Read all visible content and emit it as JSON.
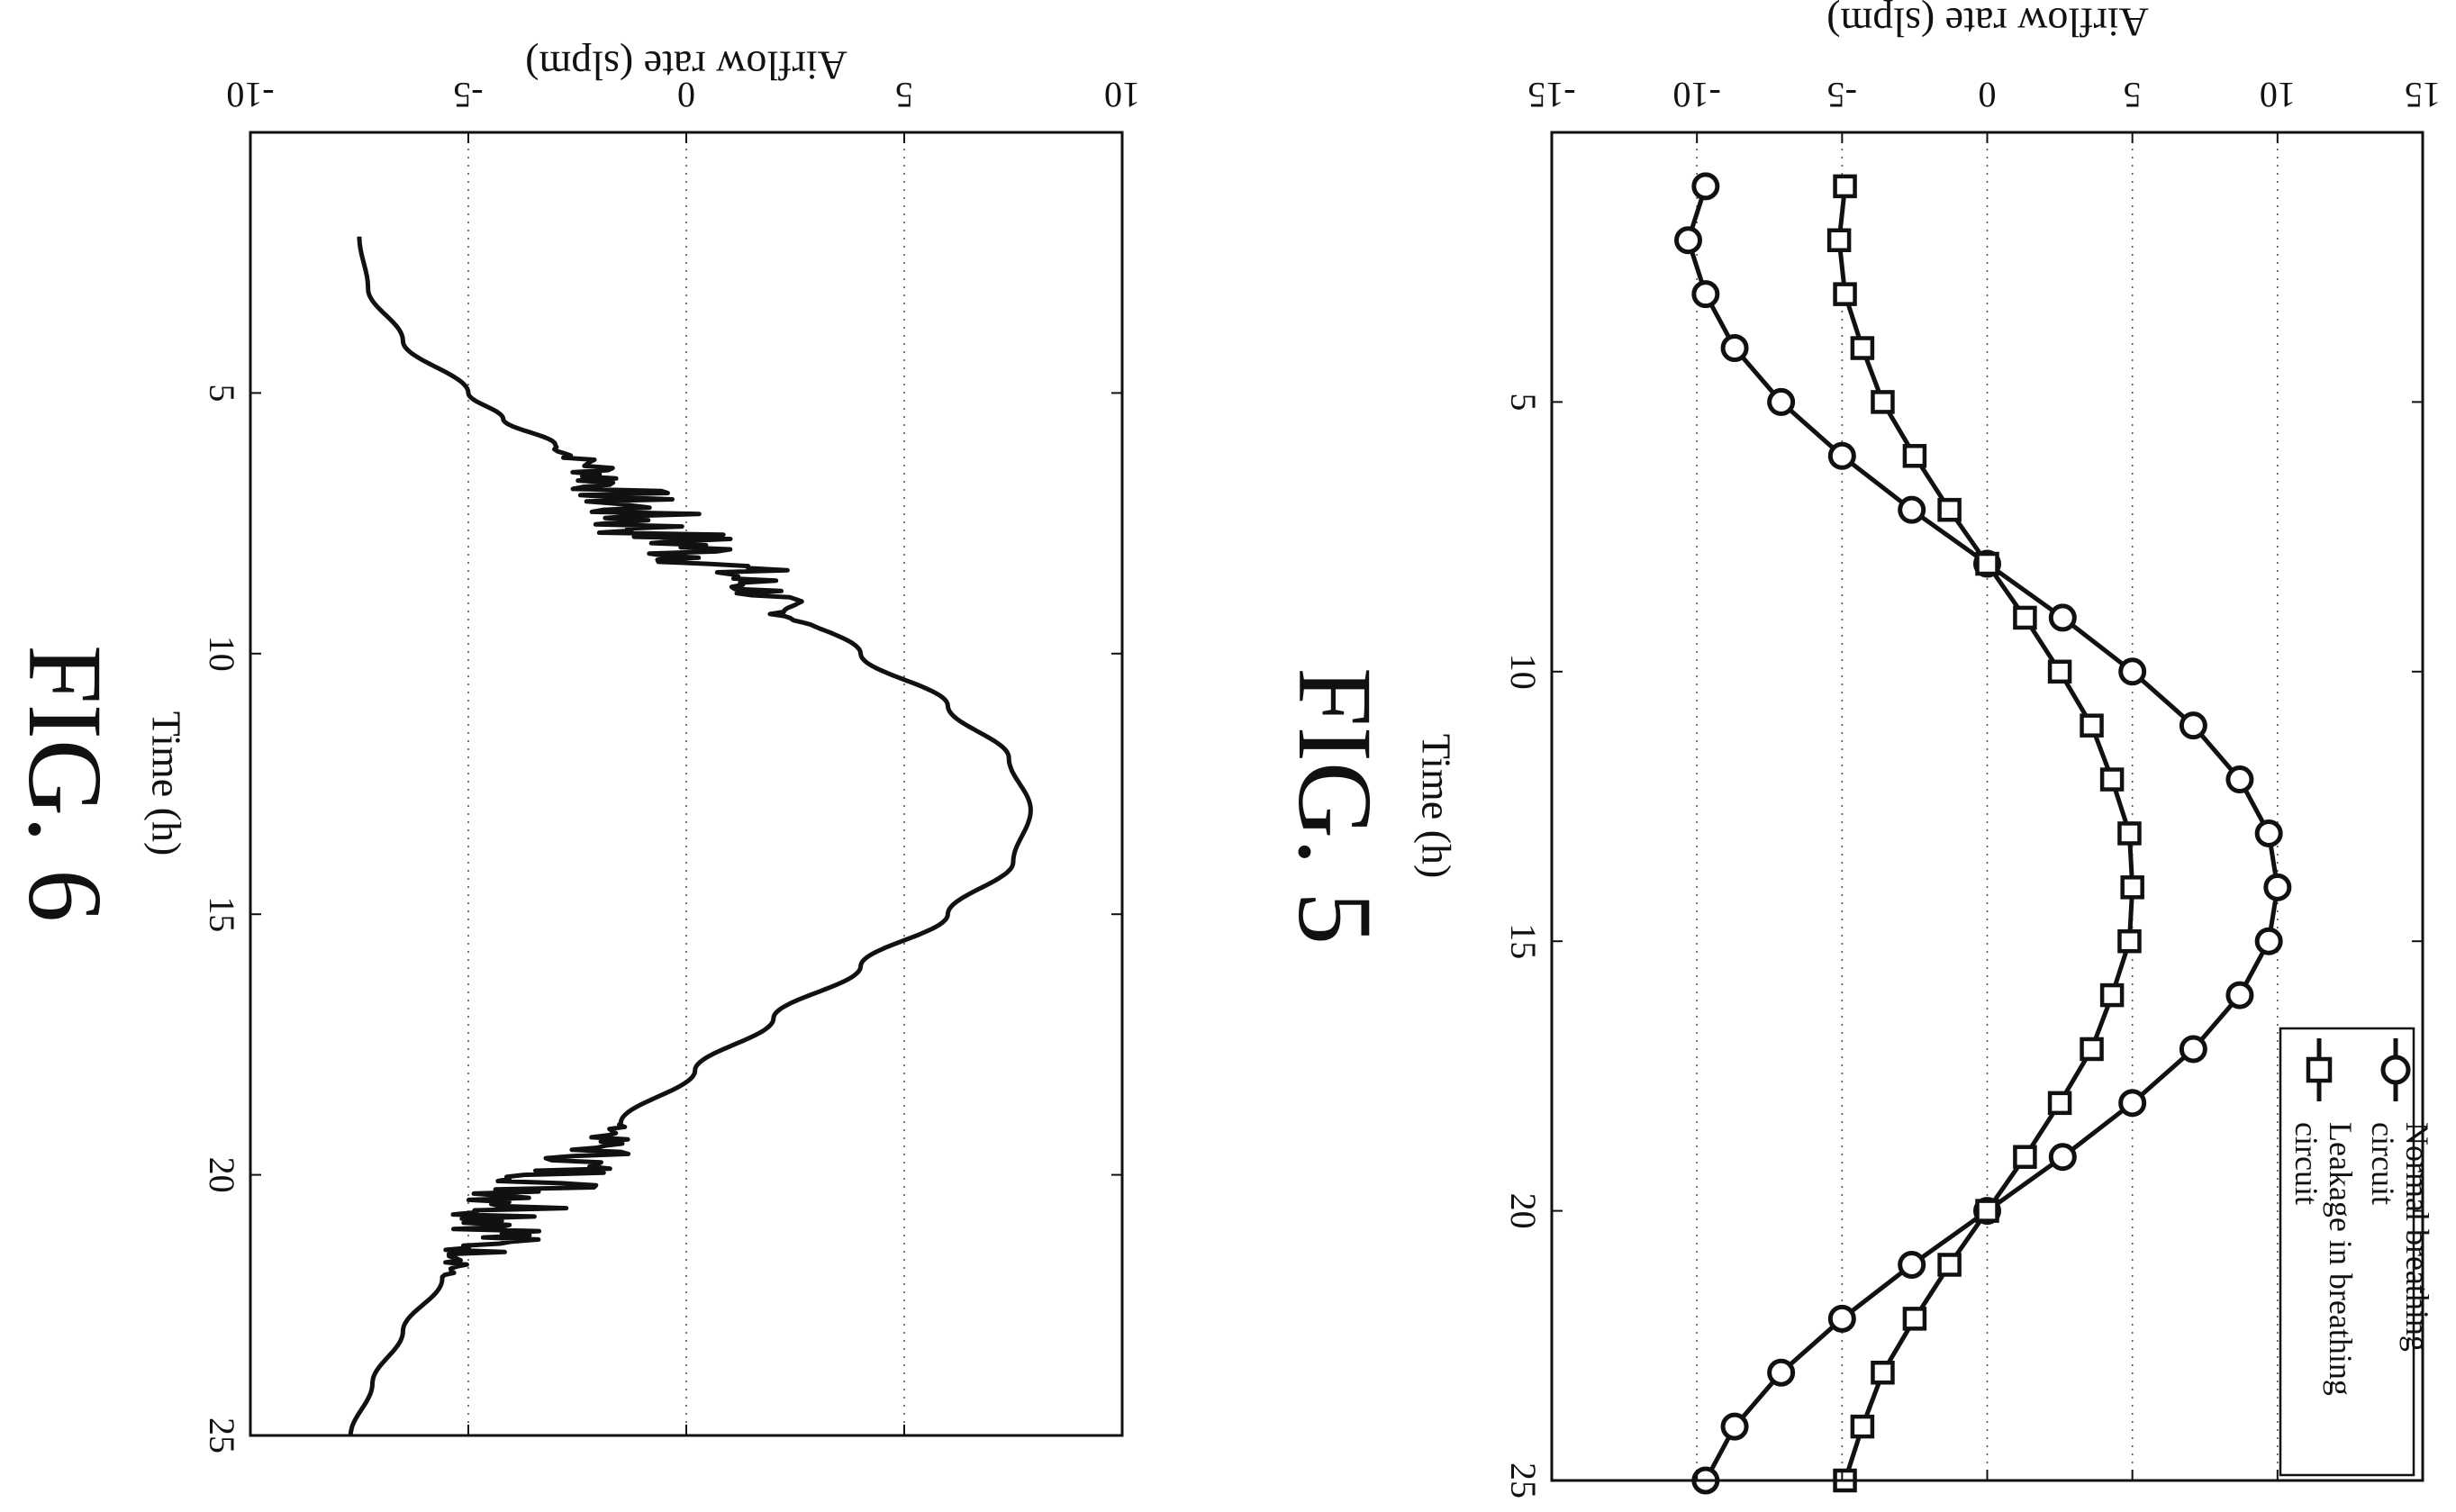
{
  "chart_data": [
    {
      "figure_label": "FIG. 5",
      "type": "line",
      "xlabel": "Time (h)",
      "ylabel": "Airflow rate (slpm)",
      "xlim": [
        0,
        25
      ],
      "ylim": [
        -15,
        15
      ],
      "x_ticks": [
        "5",
        "10",
        "15",
        "20",
        "25"
      ],
      "y_ticks": [
        "-15",
        "-10",
        "-5",
        "0",
        "5",
        "10",
        "15"
      ],
      "grid": true,
      "legend_position": "bottom-right",
      "x": [
        1,
        2,
        3,
        4,
        5,
        6,
        7,
        8,
        9,
        10,
        11,
        12,
        13,
        14,
        15,
        16,
        17,
        18,
        19,
        20,
        21,
        22,
        23,
        24,
        25
      ],
      "series": [
        {
          "name": "Normal breathing circuit",
          "legend_line1": "Normal breathing",
          "legend_line2": "circuit",
          "marker": "circle",
          "values": [
            -9.7,
            -10.3,
            -9.7,
            -8.7,
            -7.1,
            -5.0,
            -2.6,
            0.0,
            2.6,
            5.0,
            7.1,
            8.7,
            9.7,
            10.0,
            9.7,
            8.7,
            7.1,
            5.0,
            2.6,
            0.0,
            -2.6,
            -5.0,
            -7.1,
            -8.7,
            -9.7
          ]
        },
        {
          "name": "Leakage in breathing circuit",
          "legend_line1": "Leakage in breathing",
          "legend_line2": "circuit",
          "marker": "square",
          "values": [
            -4.9,
            -5.1,
            -4.9,
            -4.3,
            -3.6,
            -2.5,
            -1.3,
            0.0,
            1.3,
            2.5,
            3.6,
            4.3,
            4.9,
            5.0,
            4.9,
            4.3,
            3.6,
            2.5,
            1.3,
            0.0,
            -1.3,
            -2.5,
            -3.6,
            -4.3,
            -4.9
          ]
        }
      ]
    },
    {
      "figure_label": "FIG. 6",
      "type": "line",
      "xlabel": "Time (h)",
      "ylabel": "Airflow rate (slpm)",
      "xlim": [
        0,
        25
      ],
      "ylim": [
        -10,
        10
      ],
      "x_ticks": [
        "5",
        "10",
        "15",
        "20",
        "25"
      ],
      "y_ticks": [
        "-10",
        "-5",
        "0",
        "5",
        "10"
      ],
      "grid": true,
      "x": [
        2,
        3,
        4,
        5,
        5.5,
        6,
        6.5,
        7,
        7.5,
        8,
        8.5,
        9,
        10,
        11,
        12,
        13,
        14,
        15,
        16,
        17,
        18,
        19,
        19.5,
        20,
        20.5,
        21,
        21.5,
        22,
        23,
        24,
        25
      ],
      "series": [
        {
          "name": "",
          "values": [
            -7.5,
            -7.3,
            -6.5,
            -5.0,
            -4.2,
            -3.0,
            -2.0,
            -1.5,
            -1.0,
            0.2,
            1.2,
            2.0,
            4.0,
            6.0,
            7.4,
            7.9,
            7.5,
            6.0,
            4.0,
            2.0,
            0.2,
            -1.5,
            -2.0,
            -2.8,
            -3.6,
            -4.0,
            -4.8,
            -5.6,
            -6.5,
            -7.2,
            -7.7
          ]
        }
      ],
      "noisy_intervals": [
        [
          6,
          9.5
        ],
        [
          19,
          22
        ]
      ]
    }
  ]
}
